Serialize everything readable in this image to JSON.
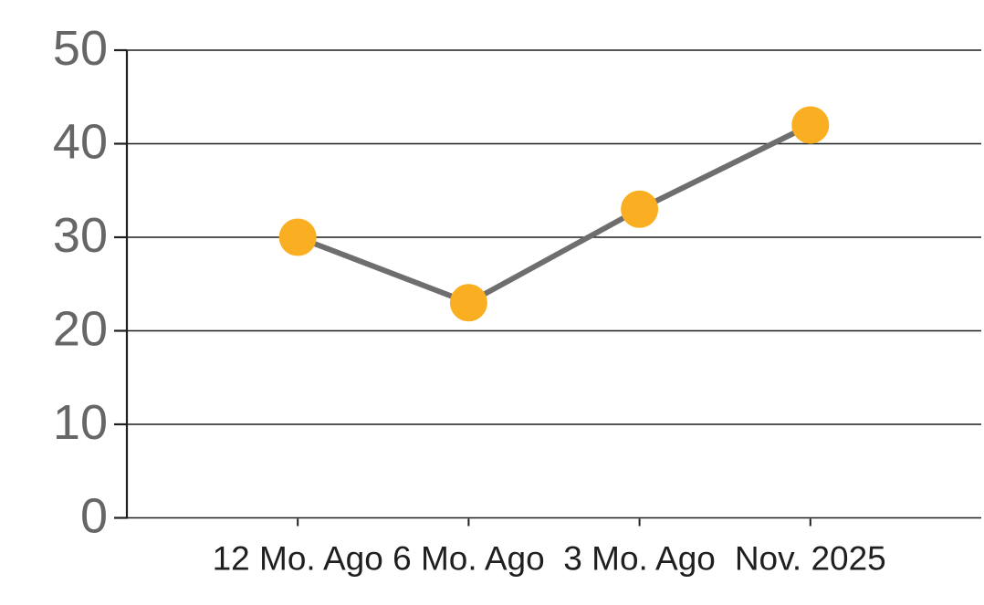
{
  "chart_data": {
    "type": "line",
    "categories": [
      "12 Mo. Ago",
      "6 Mo. Ago",
      "3 Mo. Ago",
      "Nov. 2025"
    ],
    "values": [
      30,
      23,
      33,
      42
    ],
    "title": "",
    "xlabel": "",
    "ylabel": "",
    "ylim": [
      0,
      50
    ],
    "yticks": [
      0,
      10,
      20,
      30,
      40,
      50
    ],
    "ytick_labels": [
      "0",
      "10",
      "20",
      "30",
      "40",
      "50"
    ],
    "grid": true,
    "legend_position": "none",
    "colors": {
      "marker": "#FAAF23",
      "line": "#6E6E6E",
      "gridline": "#1F1F1F",
      "axis": "#1F1F1F",
      "ytick_label": "#666666",
      "xtick_label": "#1F1F1F",
      "background": "#FFFFFF"
    }
  }
}
